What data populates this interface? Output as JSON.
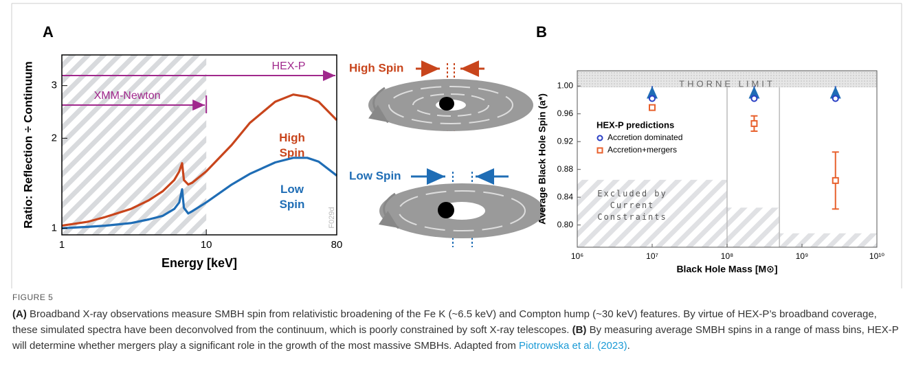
{
  "chart_data": [
    {
      "type": "line",
      "panel": "A",
      "xlabel": "Energy [keV]",
      "ylabel": "Ratio: Reflection ÷ Continuum",
      "x": [
        1,
        1.5,
        2,
        3,
        4,
        5,
        6,
        6.5,
        6.8,
        7,
        7.5,
        8,
        10,
        15,
        20,
        30,
        40,
        50,
        60,
        80
      ],
      "xlog": true,
      "ylog": true,
      "xlim": [
        1,
        80
      ],
      "ylim": [
        0.95,
        3.8
      ],
      "xticks": [
        1,
        10,
        80
      ],
      "yticks": [
        1,
        2,
        3
      ],
      "series": [
        {
          "name": "High Spin",
          "color": "#c8451c",
          "values": [
            1.02,
            1.05,
            1.09,
            1.16,
            1.24,
            1.33,
            1.45,
            1.55,
            1.65,
            1.45,
            1.4,
            1.42,
            1.55,
            1.9,
            2.25,
            2.65,
            2.8,
            2.75,
            2.65,
            2.3
          ]
        },
        {
          "name": "Low Spin",
          "color": "#1f6db5",
          "values": [
            1.0,
            1.01,
            1.02,
            1.04,
            1.07,
            1.1,
            1.16,
            1.22,
            1.35,
            1.17,
            1.12,
            1.14,
            1.22,
            1.4,
            1.52,
            1.66,
            1.72,
            1.72,
            1.67,
            1.5
          ]
        }
      ],
      "shaded_xrange": [
        1,
        10
      ],
      "annotations": [
        {
          "text": "HEX-P",
          "xrange": [
            1,
            80
          ],
          "color": "#a0288c"
        },
        {
          "text": "XMM-Newton",
          "xrange": [
            1,
            10
          ],
          "color": "#a0288c"
        }
      ],
      "watermark": "F029d"
    },
    {
      "type": "scatter",
      "panel": "B",
      "xlabel": "Black Hole Mass [M⊙]",
      "ylabel": "Average Black Hole Spin (a*)",
      "xlog": true,
      "xlim": [
        1000000,
        10000000000
      ],
      "ylim": [
        0.768,
        1.022
      ],
      "xticks": [
        {
          "value": 1000000,
          "label": "10⁶"
        },
        {
          "value": 10000000,
          "label": "10⁷"
        },
        {
          "value": 100000000,
          "label": "10⁸"
        },
        {
          "value": 1000000000,
          "label": "10⁹"
        },
        {
          "value": 10000000000,
          "label": "10¹⁰"
        }
      ],
      "yticks": [
        {
          "value": 0.8,
          "label": "0.80"
        },
        0.84,
        0.88,
        0.92,
        0.96,
        {
          "value": 1.0,
          "label": "1.00"
        }
      ],
      "x": [
        10000000,
        230000000,
        2800000000
      ],
      "legend_title": "HEX-P predictions",
      "series": [
        {
          "name": "Accretion dominated",
          "color": "#2a3fc4",
          "marker": "circle",
          "lower_limit": true,
          "values": [
            0.982,
            0.982,
            0.982
          ]
        },
        {
          "name": "Accretion+mergers",
          "color": "#e8602c",
          "marker": "square",
          "values": [
            0.969,
            0.946,
            0.864
          ],
          "errors": [
            null,
            0.011,
            0.041
          ]
        }
      ],
      "limit_band": {
        "text": "THORNE LIMIT",
        "value": 0.998
      },
      "excluded": {
        "text": "Excluded by Current Constraints",
        "bins": [
          1000000,
          100000000,
          500000000,
          10000000000
        ],
        "upper": [
          0.865,
          0.825,
          0.788
        ]
      }
    }
  ],
  "diagram": {
    "labels": [
      "High Spin",
      "Low Spin"
    ]
  },
  "caption": {
    "figure_label": "FIGURE 5",
    "parts": [
      {
        "bold": "(A)",
        "text": " Broadband X-ray observations measure SMBH spin from relativistic broadening of the Fe K (~6.5 keV) and Compton hump (~30 keV) features. By virtue of HEX-P’s broadband coverage, these simulated spectra have been deconvolved from the continuum, which is poorly constrained by soft X-ray telescopes. "
      },
      {
        "bold": "(B)",
        "text": " By measuring average SMBH spins in a range of mass bins, HEX-P will determine whether mergers play a significant role in the growth of the most massive SMBHs. Adapted from "
      }
    ],
    "link": "Piotrowska et al. (2023)",
    "end": "."
  }
}
